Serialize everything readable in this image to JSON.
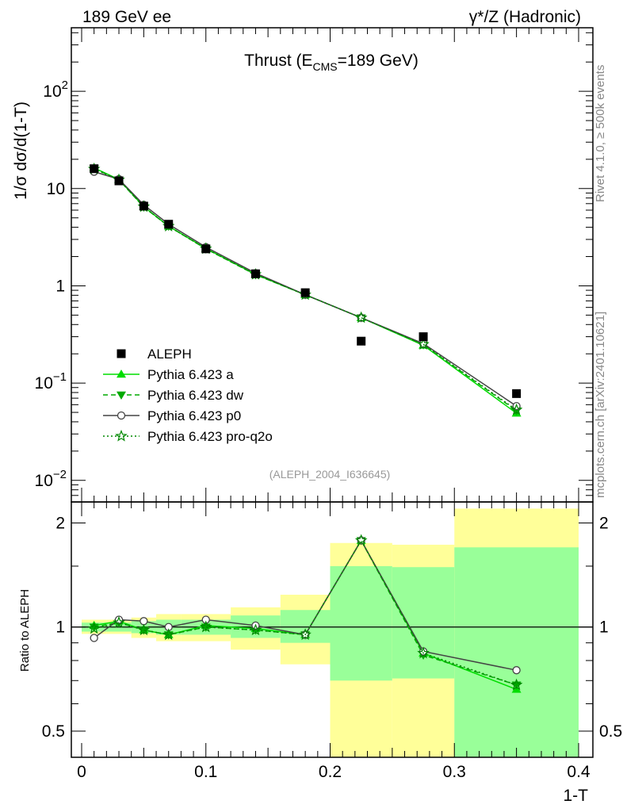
{
  "header": {
    "left": "189 GeV ee",
    "right": "γ*/Z (Hadronic)"
  },
  "side_labels": {
    "rivet": "Rivet 4.1.0, ≥ 500k events",
    "mcplots": "mcplots.cern.ch [arXiv:2401.10621]"
  },
  "chart_data": [
    {
      "type": "line",
      "scale": "log-y",
      "title": "Thrust (E_CMS=189 GeV)",
      "title_main": "Thrust (E",
      "title_sub": "CMS",
      "title_tail": "=189 GeV)",
      "ylabel": "1/σ  dσ/d(1-T)",
      "xlabel": "1-T",
      "analysis_tag": "(ALEPH_2004_I636645)",
      "xlim": [
        0,
        0.4
      ],
      "ylim": [
        0.006,
        450
      ],
      "yticks": [
        {
          "value": 0.01,
          "base": "10",
          "exp": "−2"
        },
        {
          "value": 0.1,
          "base": "10",
          "exp": "−1"
        },
        {
          "value": 1,
          "base": "1",
          "exp": ""
        },
        {
          "value": 10,
          "base": "10",
          "exp": ""
        },
        {
          "value": 100,
          "base": "10",
          "exp": "2"
        }
      ],
      "data": {
        "name": "ALEPH",
        "x": [
          0.01,
          0.03,
          0.05,
          0.07,
          0.1,
          0.14,
          0.18,
          0.225,
          0.275,
          0.35
        ],
        "y": [
          16.0,
          12.0,
          6.6,
          4.3,
          2.4,
          1.33,
          0.85,
          0.27,
          0.3,
          0.078
        ]
      },
      "series": [
        {
          "name": "Pythia 6.423 a",
          "color": "#00dd00",
          "style": "solid",
          "marker": "triangle-up",
          "x": [
            0.01,
            0.03,
            0.05,
            0.07,
            0.1,
            0.14,
            0.18,
            0.225,
            0.275,
            0.35
          ],
          "y": [
            16.3,
            12.4,
            6.5,
            4.1,
            2.42,
            1.31,
            0.81,
            0.47,
            0.245,
            0.049
          ]
        },
        {
          "name": "Pythia 6.423 dw",
          "color": "#00aa00",
          "style": "dashed",
          "marker": "triangle-down",
          "x": [
            0.01,
            0.03,
            0.05,
            0.07,
            0.1,
            0.14,
            0.18,
            0.225,
            0.275,
            0.35
          ],
          "y": [
            16.1,
            12.3,
            6.45,
            4.1,
            2.4,
            1.3,
            0.81,
            0.47,
            0.248,
            0.052
          ]
        },
        {
          "name": "Pythia 6.423 p0",
          "color": "#444444",
          "style": "solid",
          "marker": "circle-open",
          "x": [
            0.01,
            0.03,
            0.05,
            0.07,
            0.1,
            0.14,
            0.18,
            0.225,
            0.275,
            0.35
          ],
          "y": [
            14.9,
            12.5,
            6.8,
            4.3,
            2.5,
            1.35,
            0.81,
            0.47,
            0.255,
            0.058
          ]
        },
        {
          "name": "Pythia 6.423 pro-q2o",
          "color": "#008800",
          "style": "dotted",
          "marker": "star",
          "x": [
            0.01,
            0.03,
            0.05,
            0.07,
            0.1,
            0.14,
            0.18,
            0.225,
            0.275,
            0.35
          ],
          "y": [
            15.9,
            12.3,
            6.5,
            4.1,
            2.41,
            1.31,
            0.81,
            0.47,
            0.25,
            0.053
          ]
        }
      ]
    },
    {
      "type": "line",
      "ylabel": "Ratio to ALEPH",
      "xlabel": "1-T",
      "xlim": [
        0,
        0.4
      ],
      "ylim": [
        0.42,
        2.3
      ],
      "yticks": [
        0.5,
        1,
        2
      ],
      "xticks": [
        0,
        0.1,
        0.2,
        0.3,
        0.4
      ],
      "xtick_labels": [
        "0",
        "0.1",
        "0.2",
        "0.3",
        "0.4"
      ],
      "bands": [
        {
          "x0": 0.0,
          "x1": 0.02,
          "stat_lo": 0.97,
          "stat_hi": 1.03,
          "tot_lo": 0.955,
          "tot_hi": 1.05
        },
        {
          "x0": 0.02,
          "x1": 0.04,
          "stat_lo": 0.97,
          "stat_hi": 1.03,
          "tot_lo": 0.955,
          "tot_hi": 1.05
        },
        {
          "x0": 0.04,
          "x1": 0.06,
          "stat_lo": 0.96,
          "stat_hi": 1.04,
          "tot_lo": 0.93,
          "tot_hi": 1.065
        },
        {
          "x0": 0.06,
          "x1": 0.08,
          "stat_lo": 0.95,
          "stat_hi": 1.05,
          "tot_lo": 0.91,
          "tot_hi": 1.09
        },
        {
          "x0": 0.08,
          "x1": 0.12,
          "stat_lo": 0.95,
          "stat_hi": 1.05,
          "tot_lo": 0.91,
          "tot_hi": 1.09
        },
        {
          "x0": 0.12,
          "x1": 0.16,
          "stat_lo": 0.93,
          "stat_hi": 1.08,
          "tot_lo": 0.86,
          "tot_hi": 1.14
        },
        {
          "x0": 0.16,
          "x1": 0.2,
          "stat_lo": 0.9,
          "stat_hi": 1.12,
          "tot_lo": 0.78,
          "tot_hi": 1.24
        },
        {
          "x0": 0.2,
          "x1": 0.25,
          "stat_lo": 0.7,
          "stat_hi": 1.5,
          "tot_lo": 0.4,
          "tot_hi": 1.75
        },
        {
          "x0": 0.25,
          "x1": 0.3,
          "stat_lo": 0.71,
          "stat_hi": 1.49,
          "tot_lo": 0.4,
          "tot_hi": 1.73
        },
        {
          "x0": 0.3,
          "x1": 0.4,
          "stat_lo": 0.4,
          "stat_hi": 1.7,
          "tot_lo": 0.4,
          "tot_hi": 2.2
        }
      ],
      "series": [
        {
          "name": "Pythia 6.423 a",
          "color": "#00dd00",
          "style": "solid",
          "marker": "triangle-up",
          "x": [
            0.01,
            0.03,
            0.05,
            0.07,
            0.1,
            0.14,
            0.18,
            0.225,
            0.275,
            0.35
          ],
          "y": [
            1.01,
            1.04,
            0.98,
            0.95,
            1.01,
            0.99,
            0.95,
            1.78,
            0.84,
            0.66
          ]
        },
        {
          "name": "Pythia 6.423 dw",
          "color": "#00aa00",
          "style": "dashed",
          "marker": "triangle-down",
          "x": [
            0.01,
            0.03,
            0.05,
            0.07,
            0.1,
            0.14,
            0.18,
            0.225,
            0.275,
            0.35
          ],
          "y": [
            1.0,
            1.03,
            0.98,
            0.95,
            1.0,
            0.98,
            0.95,
            1.78,
            0.83,
            0.68
          ]
        },
        {
          "name": "Pythia 6.423 p0",
          "color": "#444444",
          "style": "solid",
          "marker": "circle-open",
          "x": [
            0.01,
            0.03,
            0.05,
            0.07,
            0.1,
            0.14,
            0.18,
            0.225,
            0.275,
            0.35
          ],
          "y": [
            0.93,
            1.05,
            1.04,
            1.0,
            1.05,
            1.01,
            0.95,
            1.78,
            0.85,
            0.75
          ]
        },
        {
          "name": "Pythia 6.423 pro-q2o",
          "color": "#008800",
          "style": "dotted",
          "marker": "star",
          "x": [
            0.01,
            0.03,
            0.05,
            0.07,
            0.1,
            0.14,
            0.18,
            0.225,
            0.275,
            0.35
          ],
          "y": [
            0.99,
            1.03,
            0.98,
            0.95,
            1.0,
            0.98,
            0.95,
            1.78,
            0.84,
            0.68
          ]
        }
      ]
    }
  ],
  "colors": {
    "stat_band": "#99ff99",
    "total_band": "#ffff99",
    "data_marker": "#000000"
  }
}
